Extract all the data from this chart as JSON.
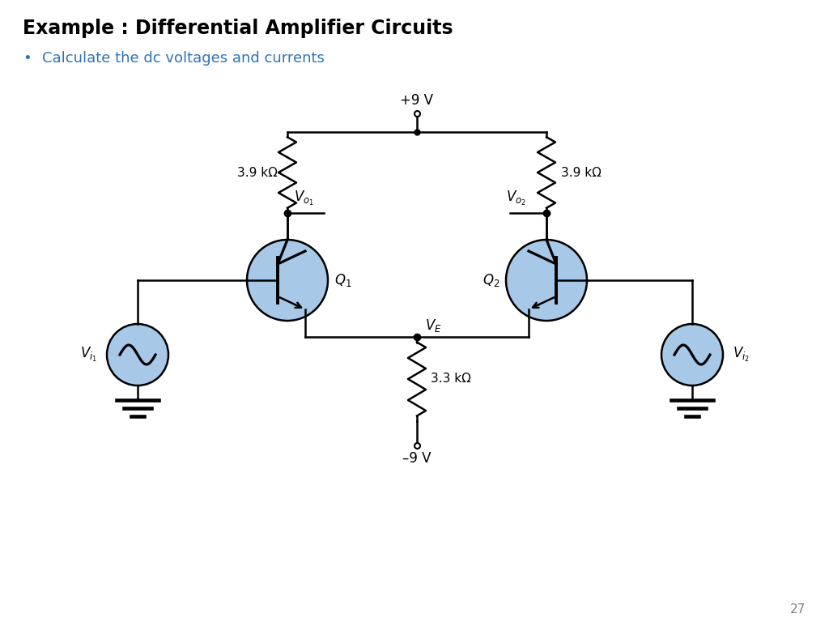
{
  "title": "Example : Differential Amplifier Circuits",
  "bullet": "Calculate the dc voltages and currents",
  "bullet_color": "#2e74b5",
  "title_color": "#000000",
  "background_color": "#ffffff",
  "page_number": "27",
  "circuit": {
    "vcc": "+9 V",
    "vee": "–9 V",
    "r1_label": "3.9 kΩ",
    "r2_label": "3.9 kΩ",
    "re_label": "3.3 kΩ",
    "transistor_color": "#a8c8e8",
    "source_color": "#a8c8e8",
    "wire_color": "#000000",
    "line_width": 1.8
  }
}
